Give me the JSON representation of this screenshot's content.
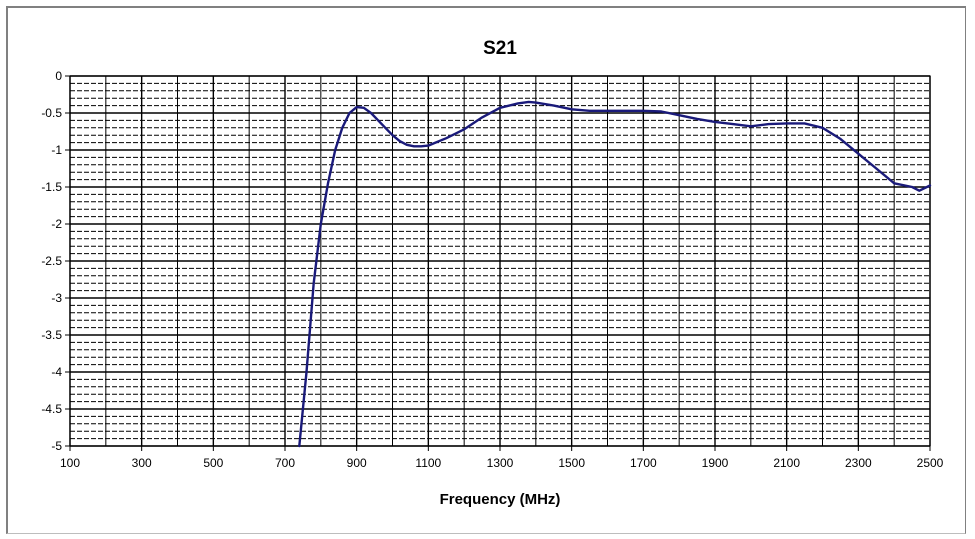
{
  "chart_data": {
    "type": "line",
    "title": "S21",
    "xlabel": "Frequency (MHz)",
    "ylabel": "",
    "xlim": [
      100,
      2500
    ],
    "ylim": [
      -5,
      0
    ],
    "x_ticks": [
      "100",
      "300",
      "500",
      "700",
      "900",
      "1100",
      "1300",
      "1500",
      "1700",
      "1900",
      "2100",
      "2300",
      "2500"
    ],
    "y_ticks": [
      "0",
      "-0.5",
      "-1",
      "-1.5",
      "-2",
      "-2.5",
      "-3",
      "-3.5",
      "-4",
      "-4.5",
      "-5"
    ],
    "grid": true,
    "legend": "none",
    "series": [
      {
        "color": "#1a1a7a",
        "x": [
          740,
          760,
          780,
          800,
          820,
          840,
          860,
          880,
          900,
          920,
          940,
          960,
          980,
          1000,
          1020,
          1040,
          1060,
          1080,
          1100,
          1120,
          1150,
          1200,
          1250,
          1300,
          1350,
          1380,
          1400,
          1450,
          1500,
          1550,
          1600,
          1700,
          1750,
          1800,
          1850,
          1900,
          1950,
          2000,
          2050,
          2100,
          2150,
          2200,
          2250,
          2300,
          2350,
          2400,
          2450,
          2470,
          2500
        ],
        "y": [
          -5.05,
          -4.0,
          -2.8,
          -2.0,
          -1.45,
          -1.0,
          -0.7,
          -0.5,
          -0.42,
          -0.43,
          -0.5,
          -0.6,
          -0.7,
          -0.8,
          -0.88,
          -0.93,
          -0.95,
          -0.95,
          -0.94,
          -0.9,
          -0.84,
          -0.72,
          -0.56,
          -0.43,
          -0.37,
          -0.35,
          -0.36,
          -0.4,
          -0.45,
          -0.47,
          -0.47,
          -0.47,
          -0.48,
          -0.53,
          -0.58,
          -0.62,
          -0.65,
          -0.68,
          -0.65,
          -0.64,
          -0.64,
          -0.7,
          -0.85,
          -1.05,
          -1.25,
          -1.45,
          -1.5,
          -1.55,
          -1.48
        ]
      }
    ]
  }
}
